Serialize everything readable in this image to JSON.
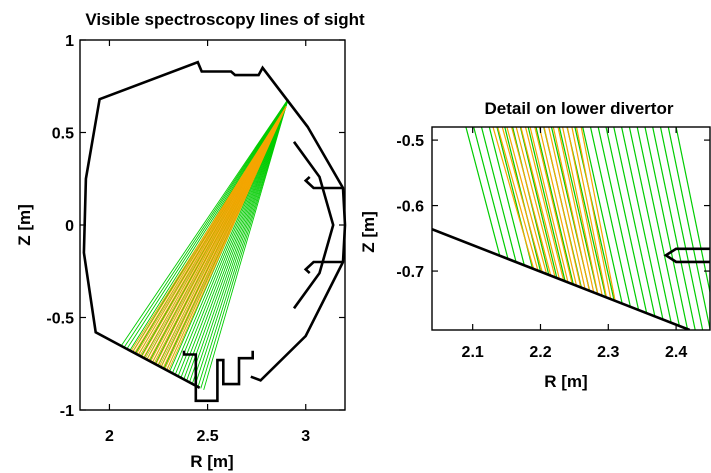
{
  "chart_data": [
    {
      "type": "line",
      "title": "Visible spectroscopy lines of sight",
      "xlabel": "R [m]",
      "ylabel": "Z [m]",
      "xlim": [
        1.85,
        3.2
      ],
      "ylim": [
        -1.0,
        1.0
      ],
      "xticks": [
        2,
        2.5,
        3
      ],
      "yticks": [
        1,
        0.5,
        0,
        -0.5,
        -1
      ],
      "xtick_labels": [
        "2",
        "2.5",
        "3"
      ],
      "ytick_labels": [
        "1",
        "0.5",
        "0",
        "-0.5",
        "-1"
      ],
      "grid": false,
      "colors": {
        "green": "#00cc00",
        "orange": "#f5a500",
        "wall": "#000000"
      },
      "wall": [
        [
          2.46,
          -0.88
        ],
        [
          1.93,
          -0.58
        ],
        [
          1.87,
          -0.15
        ],
        [
          1.88,
          0.25
        ],
        [
          1.95,
          0.68
        ],
        [
          2.45,
          0.88
        ],
        [
          2.47,
          0.83
        ],
        [
          2.62,
          0.83
        ],
        [
          2.64,
          0.81
        ],
        [
          2.76,
          0.81
        ],
        [
          2.78,
          0.85
        ],
        [
          3.01,
          0.53
        ],
        [
          3.19,
          0.2
        ],
        [
          3.2,
          0.0
        ],
        [
          3.19,
          -0.2
        ],
        [
          3.0,
          -0.6
        ],
        [
          2.77,
          -0.84
        ],
        [
          2.72,
          -0.82
        ]
      ],
      "vessel_inner": [
        [
          2.94,
          0.45
        ],
        [
          3.07,
          0.26
        ],
        [
          3.14,
          0.0
        ],
        [
          3.07,
          -0.26
        ],
        [
          2.94,
          -0.45
        ]
      ],
      "lower_divertor": [
        [
          2.38,
          -0.68
        ],
        [
          2.38,
          -0.7
        ],
        [
          2.44,
          -0.7
        ],
        [
          2.44,
          -0.95
        ],
        [
          2.55,
          -0.95
        ],
        [
          2.55,
          -0.73
        ],
        [
          2.58,
          -0.73
        ],
        [
          2.58,
          -0.86
        ],
        [
          2.66,
          -0.86
        ],
        [
          2.66,
          -0.72
        ],
        [
          2.73,
          -0.72
        ],
        [
          2.73,
          -0.68
        ]
      ],
      "green_los": {
        "origin": [
          2.91,
          0.68
        ],
        "r_start": 2.06,
        "r_end": 2.48,
        "count": 30
      },
      "orange_los": {
        "origin": [
          2.9,
          0.64
        ],
        "r_start": 2.11,
        "r_end": 2.3,
        "count": 22
      }
    },
    {
      "type": "line",
      "title": "Detail on lower divertor",
      "xlabel": "R [m]",
      "ylabel": "Z [m]",
      "xlim": [
        2.04,
        2.45
      ],
      "ylim": [
        -0.79,
        -0.48
      ],
      "xticks": [
        2.1,
        2.2,
        2.3,
        2.4
      ],
      "yticks": [
        -0.5,
        -0.6,
        -0.7
      ],
      "xtick_labels": [
        "2.1",
        "2.2",
        "2.3",
        "2.4"
      ],
      "ytick_labels": [
        "-0.5",
        "-0.6",
        "-0.7"
      ],
      "grid": false,
      "wall": [
        [
          2.04,
          -0.636
        ],
        [
          2.42,
          -0.79
        ]
      ],
      "divertor_notch": [
        [
          2.45,
          -0.666
        ],
        [
          2.4,
          -0.666
        ],
        [
          2.385,
          -0.676
        ],
        [
          2.4,
          -0.686
        ],
        [
          2.45,
          -0.686
        ]
      ],
      "green_los": {
        "top_r_start": 2.09,
        "top_r_end": 2.4,
        "bottom_r_start": 2.14,
        "bottom_r_end": 2.465,
        "count": 28
      },
      "orange_los": {
        "top_r_start": 2.13,
        "top_r_end": 2.26,
        "bottom_r_start": 2.19,
        "bottom_r_end": 2.31,
        "count": 20
      }
    }
  ]
}
